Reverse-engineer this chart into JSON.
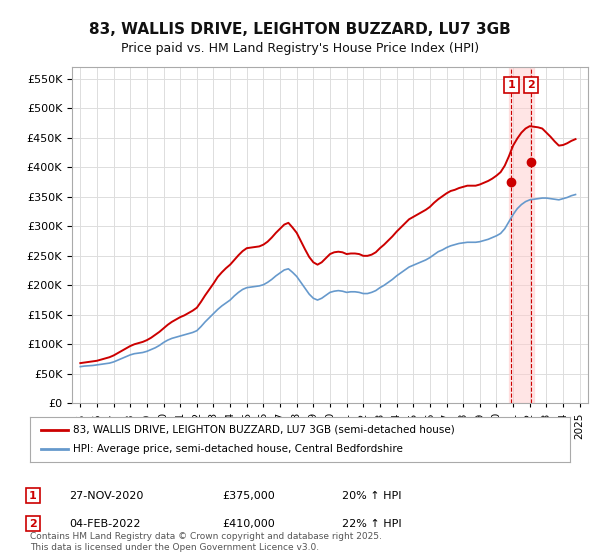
{
  "title": "83, WALLIS DRIVE, LEIGHTON BUZZARD, LU7 3GB",
  "subtitle": "Price paid vs. HM Land Registry's House Price Index (HPI)",
  "ylabel_ticks": [
    "£0",
    "£50K",
    "£100K",
    "£150K",
    "£200K",
    "£250K",
    "£300K",
    "£350K",
    "£400K",
    "£450K",
    "£500K",
    "£550K"
  ],
  "ytick_values": [
    0,
    50000,
    100000,
    150000,
    200000,
    250000,
    300000,
    350000,
    400000,
    450000,
    500000,
    550000
  ],
  "ylim": [
    0,
    570000
  ],
  "xlim_start": 1994.5,
  "xlim_end": 2025.5,
  "xtick_years": [
    1995,
    1996,
    1997,
    1998,
    1999,
    2000,
    2001,
    2002,
    2003,
    2004,
    2005,
    2006,
    2007,
    2008,
    2009,
    2010,
    2011,
    2012,
    2013,
    2014,
    2015,
    2016,
    2017,
    2018,
    2019,
    2020,
    2021,
    2022,
    2023,
    2024,
    2025
  ],
  "red_line_color": "#cc0000",
  "blue_line_color": "#6699cc",
  "background_color": "#ffffff",
  "grid_color": "#dddddd",
  "legend_border_color": "#aaaaaa",
  "transaction_marker_color": "#cc0000",
  "annotation_box_color": "#cc0000",
  "shaded_region_color": "#ffcccc",
  "legend1_text": "83, WALLIS DRIVE, LEIGHTON BUZZARD, LU7 3GB (semi-detached house)",
  "legend2_text": "HPI: Average price, semi-detached house, Central Bedfordshire",
  "annotation1": {
    "num": "1",
    "date": "27-NOV-2020",
    "price": "£375,000",
    "hpi": "20% ↑ HPI"
  },
  "annotation2": {
    "num": "2",
    "date": "04-FEB-2022",
    "price": "£410,000",
    "hpi": "22% ↑ HPI"
  },
  "footnote": "Contains HM Land Registry data © Crown copyright and database right 2025.\nThis data is licensed under the Open Government Licence v3.0.",
  "hpi_years": [
    1995.0,
    1995.25,
    1995.5,
    1995.75,
    1996.0,
    1996.25,
    1996.5,
    1996.75,
    1997.0,
    1997.25,
    1997.5,
    1997.75,
    1998.0,
    1998.25,
    1998.5,
    1998.75,
    1999.0,
    1999.25,
    1999.5,
    1999.75,
    2000.0,
    2000.25,
    2000.5,
    2000.75,
    2001.0,
    2001.25,
    2001.5,
    2001.75,
    2002.0,
    2002.25,
    2002.5,
    2002.75,
    2003.0,
    2003.25,
    2003.5,
    2003.75,
    2004.0,
    2004.25,
    2004.5,
    2004.75,
    2005.0,
    2005.25,
    2005.5,
    2005.75,
    2006.0,
    2006.25,
    2006.5,
    2006.75,
    2007.0,
    2007.25,
    2007.5,
    2007.75,
    2008.0,
    2008.25,
    2008.5,
    2008.75,
    2009.0,
    2009.25,
    2009.5,
    2009.75,
    2010.0,
    2010.25,
    2010.5,
    2010.75,
    2011.0,
    2011.25,
    2011.5,
    2011.75,
    2012.0,
    2012.25,
    2012.5,
    2012.75,
    2013.0,
    2013.25,
    2013.5,
    2013.75,
    2014.0,
    2014.25,
    2014.5,
    2014.75,
    2015.0,
    2015.25,
    2015.5,
    2015.75,
    2016.0,
    2016.25,
    2016.5,
    2016.75,
    2017.0,
    2017.25,
    2017.5,
    2017.75,
    2018.0,
    2018.25,
    2018.5,
    2018.75,
    2019.0,
    2019.25,
    2019.5,
    2019.75,
    2020.0,
    2020.25,
    2020.5,
    2020.75,
    2021.0,
    2021.25,
    2021.5,
    2021.75,
    2022.0,
    2022.25,
    2022.5,
    2022.75,
    2023.0,
    2023.25,
    2023.5,
    2023.75,
    2024.0,
    2024.25,
    2024.5,
    2024.75
  ],
  "hpi_values": [
    62000,
    63000,
    63500,
    64000,
    65000,
    66000,
    67000,
    68000,
    70000,
    73000,
    76000,
    79000,
    82000,
    84000,
    85000,
    86000,
    88000,
    91000,
    94000,
    98000,
    103000,
    107000,
    110000,
    112000,
    114000,
    116000,
    118000,
    120000,
    123000,
    130000,
    138000,
    145000,
    152000,
    159000,
    165000,
    170000,
    175000,
    182000,
    188000,
    193000,
    196000,
    197000,
    198000,
    199000,
    201000,
    205000,
    210000,
    216000,
    221000,
    226000,
    228000,
    222000,
    215000,
    205000,
    195000,
    185000,
    178000,
    175000,
    178000,
    183000,
    188000,
    190000,
    191000,
    190000,
    188000,
    189000,
    189000,
    188000,
    186000,
    186000,
    188000,
    191000,
    196000,
    200000,
    205000,
    210000,
    216000,
    221000,
    226000,
    231000,
    234000,
    237000,
    240000,
    243000,
    247000,
    252000,
    257000,
    260000,
    264000,
    267000,
    269000,
    271000,
    272000,
    273000,
    273000,
    273000,
    274000,
    276000,
    278000,
    281000,
    284000,
    288000,
    296000,
    308000,
    320000,
    330000,
    337000,
    342000,
    345000,
    346000,
    347000,
    348000,
    348000,
    347000,
    346000,
    345000,
    347000,
    349000,
    352000,
    354000
  ],
  "red_years": [
    1995.0,
    1995.25,
    1995.5,
    1995.75,
    1996.0,
    1996.25,
    1996.5,
    1996.75,
    1997.0,
    1997.25,
    1997.5,
    1997.75,
    1998.0,
    1998.25,
    1998.5,
    1998.75,
    1999.0,
    1999.25,
    1999.5,
    1999.75,
    2000.0,
    2000.25,
    2000.5,
    2000.75,
    2001.0,
    2001.25,
    2001.5,
    2001.75,
    2002.0,
    2002.25,
    2002.5,
    2002.75,
    2003.0,
    2003.25,
    2003.5,
    2003.75,
    2004.0,
    2004.25,
    2004.5,
    2004.75,
    2005.0,
    2005.25,
    2005.5,
    2005.75,
    2006.0,
    2006.25,
    2006.5,
    2006.75,
    2007.0,
    2007.25,
    2007.5,
    2007.75,
    2008.0,
    2008.25,
    2008.5,
    2008.75,
    2009.0,
    2009.25,
    2009.5,
    2009.75,
    2010.0,
    2010.25,
    2010.5,
    2010.75,
    2011.0,
    2011.25,
    2011.5,
    2011.75,
    2012.0,
    2012.25,
    2012.5,
    2012.75,
    2013.0,
    2013.25,
    2013.5,
    2013.75,
    2014.0,
    2014.25,
    2014.5,
    2014.75,
    2015.0,
    2015.25,
    2015.5,
    2015.75,
    2016.0,
    2016.25,
    2016.5,
    2016.75,
    2017.0,
    2017.25,
    2017.5,
    2017.75,
    2018.0,
    2018.25,
    2018.5,
    2018.75,
    2019.0,
    2019.25,
    2019.5,
    2019.75,
    2020.0,
    2020.25,
    2020.5,
    2020.75,
    2021.0,
    2021.25,
    2021.5,
    2021.75,
    2022.0,
    2022.25,
    2022.5,
    2022.75,
    2023.0,
    2023.25,
    2023.5,
    2023.75,
    2024.0,
    2024.25,
    2024.5,
    2024.75
  ],
  "red_values": [
    68000,
    69000,
    70000,
    71000,
    72000,
    74000,
    76000,
    78000,
    81000,
    85000,
    89000,
    93000,
    97000,
    100000,
    102000,
    104000,
    107000,
    111000,
    116000,
    121000,
    127000,
    133000,
    138000,
    142000,
    146000,
    149000,
    153000,
    157000,
    162000,
    172000,
    183000,
    193000,
    203000,
    214000,
    222000,
    229000,
    235000,
    243000,
    251000,
    258000,
    263000,
    264000,
    265000,
    266000,
    269000,
    274000,
    281000,
    289000,
    296000,
    303000,
    306000,
    298000,
    289000,
    275000,
    261000,
    248000,
    239000,
    235000,
    239000,
    246000,
    253000,
    256000,
    257000,
    256000,
    253000,
    254000,
    254000,
    253000,
    250000,
    250000,
    252000,
    256000,
    263000,
    269000,
    276000,
    283000,
    291000,
    298000,
    305000,
    312000,
    316000,
    320000,
    324000,
    328000,
    333000,
    340000,
    346000,
    351000,
    356000,
    360000,
    362000,
    365000,
    367000,
    369000,
    369000,
    369000,
    371000,
    374000,
    377000,
    381000,
    386000,
    392000,
    403000,
    419000,
    437000,
    449000,
    459000,
    466000,
    470000,
    469000,
    468000,
    466000,
    459000,
    452000,
    444000,
    437000,
    438000,
    441000,
    445000,
    448000
  ],
  "transaction1_x": 2020.9,
  "transaction1_y": 375000,
  "transaction2_x": 2022.08,
  "transaction2_y": 410000,
  "shaded_x_start": 2020.75,
  "shaded_x_end": 2022.25
}
